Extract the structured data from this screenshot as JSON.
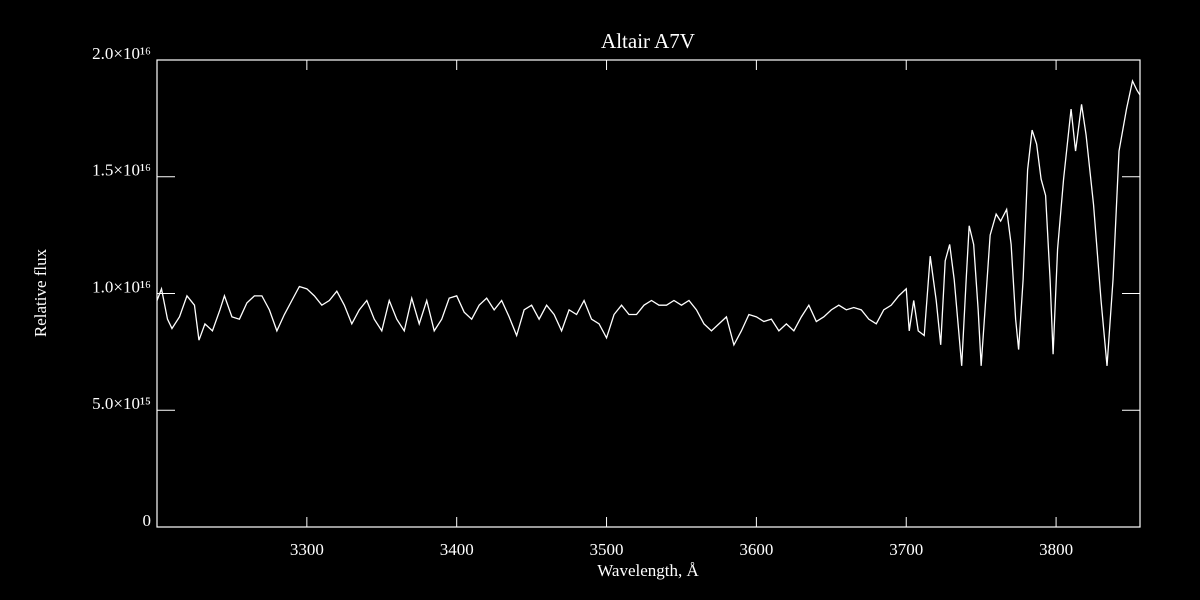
{
  "chart_data": {
    "type": "line",
    "title": "Altair  A7V",
    "xlabel": "Wavelength, Å",
    "ylabel": "Relative flux",
    "xlim": [
      3200,
      3856
    ],
    "ylim": [
      0,
      2e+16
    ],
    "xticks": [
      3300,
      3400,
      3500,
      3600,
      3700,
      3800
    ],
    "yticks": [
      0,
      {
        "value": 5000000000000000.0,
        "label": "5.0×10¹⁵"
      },
      {
        "value": 1e+16,
        "label": "1.0×10¹⁶"
      },
      {
        "value": 1.5e+16,
        "label": "1.5×10¹⁶"
      },
      {
        "value": 2e+16,
        "label": "2.0×10¹⁶"
      }
    ],
    "color": "#ffffff",
    "x": [
      3200,
      3203,
      3207,
      3210,
      3215,
      3220,
      3225,
      3228,
      3232,
      3237,
      3242,
      3245,
      3250,
      3255,
      3260,
      3265,
      3270,
      3275,
      3280,
      3285,
      3290,
      3295,
      3300,
      3305,
      3310,
      3315,
      3320,
      3325,
      3330,
      3335,
      3340,
      3345,
      3350,
      3355,
      3360,
      3365,
      3370,
      3375,
      3380,
      3385,
      3390,
      3395,
      3400,
      3405,
      3410,
      3415,
      3420,
      3425,
      3430,
      3435,
      3440,
      3445,
      3450,
      3455,
      3460,
      3465,
      3470,
      3475,
      3480,
      3485,
      3490,
      3495,
      3500,
      3505,
      3510,
      3515,
      3520,
      3525,
      3530,
      3535,
      3540,
      3545,
      3550,
      3555,
      3560,
      3565,
      3570,
      3575,
      3580,
      3585,
      3590,
      3595,
      3600,
      3605,
      3610,
      3615,
      3620,
      3625,
      3630,
      3635,
      3640,
      3645,
      3650,
      3655,
      3660,
      3665,
      3670,
      3675,
      3680,
      3685,
      3690,
      3695,
      3700,
      3702,
      3705,
      3708,
      3712,
      3716,
      3720,
      3723,
      3726,
      3729,
      3732,
      3735,
      3737,
      3740,
      3742,
      3745,
      3748,
      3750,
      3753,
      3756,
      3760,
      3763,
      3767,
      3770,
      3773,
      3775,
      3778,
      3781,
      3784,
      3787,
      3790,
      3793,
      3796,
      3798,
      3801,
      3805,
      3810,
      3813,
      3817,
      3820,
      3825,
      3830,
      3834,
      3838,
      3842,
      3847,
      3851,
      3854,
      3856
    ],
    "values": [
      9700000000000000.0,
      1.02e+16,
      8900000000000000.0,
      8500000000000000.0,
      9000000000000000.0,
      9900000000000000.0,
      9500000000000000.0,
      8000000000000000.0,
      8700000000000000.0,
      8400000000000000.0,
      9300000000000000.0,
      9900000000000000.0,
      9000000000000000.0,
      8900000000000000.0,
      9600000000000000.0,
      9900000000000000.0,
      9900000000000000.0,
      9300000000000000.0,
      8400000000000000.0,
      9100000000000000.0,
      9700000000000000.0,
      1.03e+16,
      1.02e+16,
      9900000000000000.0,
      9500000000000000.0,
      9700000000000000.0,
      1.01e+16,
      9500000000000000.0,
      8700000000000000.0,
      9300000000000000.0,
      9700000000000000.0,
      8900000000000000.0,
      8400000000000000.0,
      9700000000000000.0,
      8900000000000000.0,
      8400000000000000.0,
      9800000000000000.0,
      8700000000000000.0,
      9700000000000000.0,
      8400000000000000.0,
      8900000000000000.0,
      9800000000000000.0,
      9900000000000000.0,
      9200000000000000.0,
      8900000000000000.0,
      9500000000000000.0,
      9800000000000000.0,
      9300000000000000.0,
      9700000000000000.0,
      9000000000000000.0,
      8200000000000000.0,
      9300000000000000.0,
      9500000000000000.0,
      8900000000000000.0,
      9500000000000000.0,
      9100000000000000.0,
      8400000000000000.0,
      9300000000000000.0,
      9100000000000000.0,
      9700000000000000.0,
      8900000000000000.0,
      8700000000000000.0,
      8100000000000000.0,
      9100000000000000.0,
      9500000000000000.0,
      9100000000000000.0,
      9100000000000000.0,
      9500000000000000.0,
      9700000000000000.0,
      9500000000000000.0,
      9500000000000000.0,
      9700000000000000.0,
      9500000000000000.0,
      9700000000000000.0,
      9300000000000000.0,
      8700000000000000.0,
      8400000000000000.0,
      8700000000000000.0,
      9000000000000000.0,
      7800000000000000.0,
      8400000000000000.0,
      9100000000000000.0,
      9000000000000000.0,
      8800000000000000.0,
      8900000000000000.0,
      8400000000000000.0,
      8700000000000000.0,
      8400000000000000.0,
      9000000000000000.0,
      9500000000000000.0,
      8800000000000000.0,
      9000000000000000.0,
      9300000000000000.0,
      9500000000000000.0,
      9300000000000000.0,
      9400000000000000.0,
      9300000000000000.0,
      8900000000000000.0,
      8700000000000000.0,
      9300000000000000.0,
      9500000000000000.0,
      9900000000000000.0,
      1.02e+16,
      8400000000000000.0,
      9700000000000000.0,
      8400000000000000.0,
      8200000000000000.0,
      1.16e+16,
      9700000000000000.0,
      7800000000000000.0,
      1.14e+16,
      1.21e+16,
      1.06e+16,
      8400000000000000.0,
      6900000000000000.0,
      1.06e+16,
      1.29e+16,
      1.21e+16,
      9300000000000000.0,
      6900000000000000.0,
      9700000000000000.0,
      1.25e+16,
      1.34e+16,
      1.31e+16,
      1.36e+16,
      1.21e+16,
      8900000000000000.0,
      7600000000000000.0,
      1.06e+16,
      1.53e+16,
      1.7e+16,
      1.64e+16,
      1.49e+16,
      1.42e+16,
      1.06e+16,
      7400000000000000.0,
      1.19e+16,
      1.49e+16,
      1.79e+16,
      1.61e+16,
      1.81e+16,
      1.68e+16,
      1.38e+16,
      9700000000000000.0,
      6900000000000000.0,
      1.06e+16,
      1.61e+16,
      1.79e+16,
      1.91e+16,
      1.87e+16,
      1.85e+16
    ]
  }
}
